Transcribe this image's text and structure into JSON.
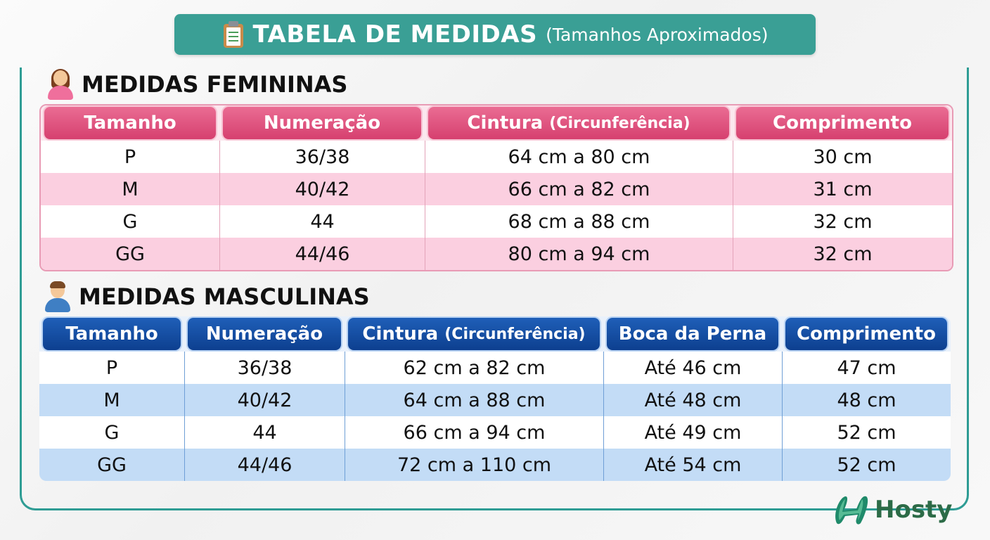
{
  "title": {
    "main": "TABELA DE MEDIDAS",
    "sub": "(Tamanhos Aproximados)",
    "icon": "clipboard-icon"
  },
  "feminine": {
    "heading": "MEDIDAS FEMININAS",
    "icon": "woman-icon",
    "accent_color": "#d6406f",
    "headers": [
      "Tamanho",
      "Numeração",
      "Cintura",
      "(Circunferência)",
      "Comprimento"
    ],
    "rows": [
      [
        "P",
        "36/38",
        "64 cm a 80 cm",
        "30 cm"
      ],
      [
        "M",
        "40/42",
        "66 cm a 82 cm",
        "31 cm"
      ],
      [
        "G",
        "44",
        "68 cm a 88 cm",
        "32 cm"
      ],
      [
        "GG",
        "44/46",
        "80 cm a 94 cm",
        "32 cm"
      ]
    ]
  },
  "masculine": {
    "heading": "MEDIDAS MASCULINAS",
    "icon": "man-icon",
    "accent_color": "#0d3f8f",
    "headers": [
      "Tamanho",
      "Numeração",
      "Cintura",
      "(Circunferência)",
      "Boca da Perna",
      "Comprimento"
    ],
    "rows": [
      [
        "P",
        "36/38",
        "62 cm a 82 cm",
        "Até 46 cm",
        "47 cm"
      ],
      [
        "M",
        "40/42",
        "64 cm a 88 cm",
        "Até 48 cm",
        "48 cm"
      ],
      [
        "G",
        "44",
        "66 cm a 94 cm",
        "Até 49 cm",
        "52 cm"
      ],
      [
        "GG",
        "44/46",
        "72 cm a 110 cm",
        "Até 54 cm",
        "52 cm"
      ]
    ]
  },
  "logo": {
    "text": "Hosty",
    "icon": "hosty-logo-icon"
  }
}
